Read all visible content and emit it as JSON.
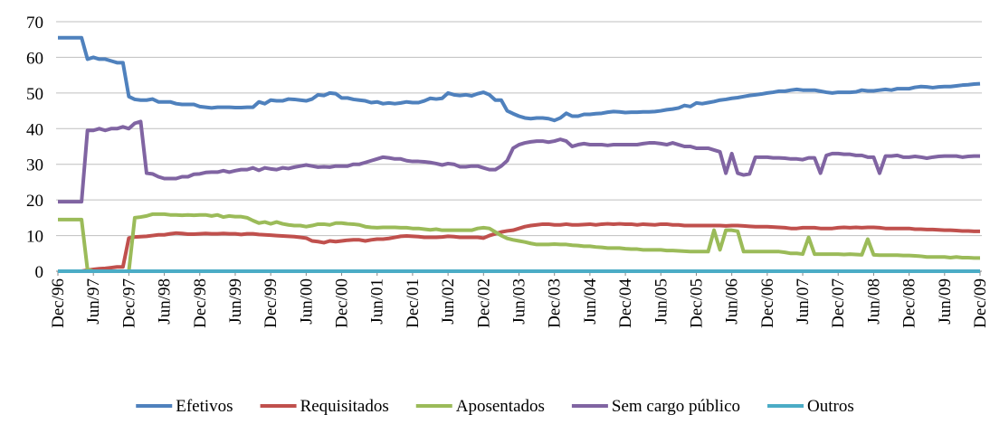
{
  "chart_data": {
    "type": "line",
    "categories": [
      "Dec/96",
      null,
      null,
      null,
      null,
      null,
      "Jun/97",
      null,
      null,
      null,
      null,
      null,
      "Dec/97",
      null,
      null,
      null,
      null,
      null,
      "Jun/98",
      null,
      null,
      null,
      null,
      null,
      "Dec/98",
      null,
      null,
      null,
      null,
      null,
      "Jun/99",
      null,
      null,
      null,
      null,
      null,
      "Dec/99",
      null,
      null,
      null,
      null,
      null,
      "Jun/00",
      null,
      null,
      null,
      null,
      null,
      "Dec/00",
      null,
      null,
      null,
      null,
      null,
      "Jun/01",
      null,
      null,
      null,
      null,
      null,
      "Dec/01",
      null,
      null,
      null,
      null,
      null,
      "Jun/02",
      null,
      null,
      null,
      null,
      null,
      "Dec/02",
      null,
      null,
      null,
      null,
      null,
      "Jun/03",
      null,
      null,
      null,
      null,
      null,
      "Dec/03",
      null,
      null,
      null,
      null,
      null,
      "Jun/04",
      null,
      null,
      null,
      null,
      null,
      "Dec/04",
      null,
      null,
      null,
      null,
      null,
      "Jun/05",
      null,
      null,
      null,
      null,
      null,
      "Dec/05",
      null,
      null,
      null,
      null,
      null,
      "Jun/06",
      null,
      null,
      null,
      null,
      null,
      "Dec/06",
      null,
      null,
      null,
      null,
      null,
      "Jun/07",
      null,
      null,
      null,
      null,
      null,
      "Dec/07",
      null,
      null,
      null,
      null,
      null,
      "Jun/08",
      null,
      null,
      null,
      null,
      null,
      "Dec/08",
      null,
      null,
      null,
      null,
      null,
      "Jun/09",
      null,
      null,
      null,
      null,
      null,
      "Dec/09"
    ],
    "series": [
      {
        "name": "Efetivos",
        "color": "#4f81bd",
        "values": [
          65.5,
          65.5,
          65.5,
          65.5,
          65.5,
          59.5,
          60,
          59.5,
          59.5,
          59,
          58.5,
          58.5,
          49,
          48.2,
          48,
          48,
          48.3,
          47.5,
          47.5,
          47.5,
          47,
          46.8,
          46.8,
          46.8,
          46.2,
          46,
          45.8,
          46,
          46,
          46,
          45.9,
          45.9,
          46,
          46,
          47.5,
          47,
          48,
          47.8,
          47.8,
          48.3,
          48.2,
          48,
          47.8,
          48.3,
          49.5,
          49.3,
          50,
          49.8,
          48.6,
          48.6,
          48.2,
          48,
          47.8,
          47.3,
          47.5,
          47,
          47.2,
          47,
          47.2,
          47.5,
          47.3,
          47.3,
          47.8,
          48.5,
          48.3,
          48.5,
          50,
          49.5,
          49.3,
          49.5,
          49.2,
          49.8,
          50.2,
          49.5,
          48,
          48,
          45,
          44.2,
          43.5,
          43,
          42.8,
          43,
          43,
          42.8,
          42.3,
          43,
          44.3,
          43.5,
          43.5,
          44,
          44,
          44.2,
          44.3,
          44.6,
          44.8,
          44.7,
          44.5,
          44.6,
          44.6,
          44.7,
          44.7,
          44.8,
          45,
          45.3,
          45.5,
          45.8,
          46.5,
          46.2,
          47.2,
          47,
          47.3,
          47.6,
          48,
          48.2,
          48.5,
          48.7,
          49,
          49.3,
          49.5,
          49.7,
          50,
          50.2,
          50.5,
          50.5,
          50.8,
          51,
          50.8,
          50.8,
          50.8,
          50.5,
          50.2,
          50,
          50.2,
          50.2,
          50.2,
          50.3,
          50.8,
          50.6,
          50.6,
          50.8,
          51,
          50.8,
          51.2,
          51.2,
          51.2,
          51.6,
          51.8,
          51.7,
          51.5,
          51.7,
          51.8,
          51.8,
          52,
          52.2,
          52.3,
          52.5,
          52.6
        ]
      },
      {
        "name": "Requisitados",
        "color": "#c0504d",
        "values": [
          0,
          0,
          0,
          0,
          0,
          0.3,
          0.5,
          0.7,
          0.8,
          1,
          1.2,
          1.2,
          9.3,
          9.6,
          9.7,
          9.8,
          10,
          10.2,
          10.2,
          10.5,
          10.7,
          10.6,
          10.4,
          10.4,
          10.5,
          10.6,
          10.5,
          10.5,
          10.6,
          10.5,
          10.5,
          10.3,
          10.5,
          10.5,
          10.3,
          10.2,
          10.1,
          10,
          9.9,
          9.8,
          9.7,
          9.5,
          9.3,
          8.5,
          8.3,
          8,
          8.5,
          8.3,
          8.5,
          8.7,
          8.8,
          8.8,
          8.5,
          8.8,
          9,
          9,
          9.2,
          9.5,
          9.8,
          9.9,
          9.8,
          9.7,
          9.5,
          9.5,
          9.5,
          9.6,
          9.8,
          9.7,
          9.5,
          9.5,
          9.5,
          9.5,
          9.3,
          10,
          10.5,
          11,
          11.3,
          11.5,
          12,
          12.5,
          12.8,
          13,
          13.2,
          13.2,
          13,
          13,
          13.2,
          13,
          13,
          13.1,
          13.2,
          13,
          13.2,
          13.3,
          13.2,
          13.3,
          13.2,
          13.2,
          13,
          13.2,
          13.1,
          13,
          13.2,
          13.2,
          13,
          13,
          12.8,
          12.8,
          12.8,
          12.8,
          12.8,
          12.8,
          12.8,
          12.7,
          12.8,
          12.8,
          12.7,
          12.6,
          12.5,
          12.5,
          12.5,
          12.4,
          12.3,
          12.2,
          12,
          12,
          12.2,
          12.2,
          12.2,
          12,
          12,
          12,
          12.2,
          12.3,
          12.2,
          12.3,
          12.2,
          12.3,
          12.3,
          12.2,
          12,
          12,
          12,
          12,
          12,
          11.8,
          11.8,
          11.7,
          11.7,
          11.6,
          11.5,
          11.5,
          11.4,
          11.3,
          11.3,
          11.2,
          11.2
        ]
      },
      {
        "name": "Aposentados",
        "color": "#9bbb59",
        "values": [
          14.5,
          14.5,
          14.5,
          14.5,
          14.5,
          0.5,
          0,
          0,
          0,
          0,
          0,
          0,
          0,
          15,
          15.2,
          15.5,
          16,
          16,
          16,
          15.8,
          15.8,
          15.7,
          15.8,
          15.7,
          15.8,
          15.8,
          15.5,
          15.8,
          15.2,
          15.5,
          15.3,
          15.3,
          15,
          14.2,
          13.5,
          13.8,
          13.3,
          13.8,
          13.3,
          13,
          12.8,
          12.8,
          12.5,
          12.8,
          13.2,
          13.2,
          13,
          13.5,
          13.5,
          13.3,
          13.2,
          13,
          12.5,
          12.3,
          12.2,
          12.3,
          12.3,
          12.3,
          12.2,
          12.2,
          12,
          12,
          11.8,
          11.6,
          11.8,
          11.5,
          11.5,
          11.5,
          11.5,
          11.5,
          11.5,
          12,
          12.2,
          12,
          11,
          10,
          9.2,
          8.8,
          8.5,
          8.2,
          7.8,
          7.5,
          7.5,
          7.5,
          7.6,
          7.5,
          7.5,
          7.3,
          7.2,
          7,
          7,
          6.8,
          6.7,
          6.5,
          6.5,
          6.5,
          6.3,
          6.2,
          6.2,
          6,
          6,
          6,
          6,
          5.8,
          5.8,
          5.7,
          5.6,
          5.5,
          5.5,
          5.5,
          5.5,
          11.5,
          6,
          11.5,
          11.5,
          11.2,
          5.5,
          5.5,
          5.5,
          5.5,
          5.5,
          5.5,
          5.5,
          5.3,
          5,
          5,
          4.8,
          9.5,
          4.8,
          4.8,
          4.8,
          4.8,
          4.8,
          4.7,
          4.8,
          4.7,
          4.6,
          9,
          4.6,
          4.5,
          4.5,
          4.5,
          4.5,
          4.4,
          4.4,
          4.3,
          4.2,
          4,
          4,
          4,
          4,
          3.8,
          4,
          3.8,
          3.8,
          3.7,
          3.7
        ]
      },
      {
        "name": "Sem cargo público",
        "color": "#8064a2",
        "values": [
          19.5,
          19.5,
          19.5,
          19.5,
          19.5,
          39.5,
          39.5,
          40,
          39.5,
          40,
          40,
          40.5,
          40,
          41.5,
          42,
          27.5,
          27.3,
          26.5,
          26,
          26,
          26,
          26.5,
          26.5,
          27.2,
          27.3,
          27.7,
          27.8,
          27.8,
          28.2,
          27.8,
          28.2,
          28.5,
          28.5,
          29,
          28.3,
          29,
          28.7,
          28.5,
          29,
          28.8,
          29.2,
          29.5,
          29.8,
          29.5,
          29.2,
          29.3,
          29.2,
          29.5,
          29.5,
          29.5,
          30,
          30,
          30.5,
          31,
          31.5,
          32,
          31.8,
          31.5,
          31.5,
          31,
          30.8,
          30.8,
          30.7,
          30.5,
          30.2,
          29.8,
          30.2,
          30,
          29.3,
          29.3,
          29.5,
          29.5,
          29,
          28.5,
          28.5,
          29.5,
          31,
          34.5,
          35.5,
          36,
          36.3,
          36.5,
          36.5,
          36.2,
          36.5,
          37,
          36.5,
          35,
          35.5,
          35.8,
          35.5,
          35.5,
          35.5,
          35.3,
          35.5,
          35.5,
          35.5,
          35.5,
          35.5,
          35.8,
          36,
          36,
          35.8,
          35.5,
          36,
          35.5,
          35,
          35,
          34.5,
          34.5,
          34.5,
          34,
          33.5,
          27.5,
          33,
          27.5,
          27,
          27.3,
          32,
          32,
          32,
          31.8,
          31.8,
          31.7,
          31.5,
          31.5,
          31.3,
          31.8,
          31.8,
          27.5,
          32.5,
          33,
          33,
          32.8,
          32.8,
          32.5,
          32.5,
          32,
          32,
          27.5,
          32.3,
          32.3,
          32.5,
          32,
          32,
          32.2,
          32,
          31.7,
          32,
          32.2,
          32.3,
          32.3,
          32.3,
          32,
          32.2,
          32.3,
          32.3
        ]
      },
      {
        "name": "Outros",
        "color": "#4bacc6",
        "values": [
          0,
          0,
          0,
          0,
          0,
          0,
          0,
          0,
          0,
          0,
          0,
          0,
          0,
          0,
          0,
          0,
          0,
          0,
          0,
          0,
          0,
          0,
          0,
          0,
          0,
          0,
          0,
          0,
          0,
          0,
          0,
          0,
          0,
          0,
          0,
          0,
          0,
          0,
          0,
          0,
          0,
          0,
          0,
          0,
          0,
          0,
          0,
          0,
          0,
          0,
          0,
          0,
          0,
          0,
          0,
          0,
          0,
          0,
          0,
          0,
          0,
          0,
          0,
          0,
          0,
          0,
          0,
          0,
          0,
          0,
          0,
          0,
          0,
          0,
          0,
          0,
          0,
          0,
          0,
          0,
          0,
          0,
          0,
          0,
          0,
          0,
          0,
          0,
          0,
          0,
          0,
          0,
          0,
          0,
          0,
          0,
          0,
          0,
          0,
          0,
          0,
          0,
          0,
          0,
          0,
          0,
          0,
          0,
          0,
          0,
          0,
          0,
          0,
          0,
          0,
          0,
          0,
          0,
          0,
          0,
          0,
          0,
          0,
          0,
          0,
          0,
          0,
          0,
          0,
          0,
          0,
          0,
          0,
          0,
          0,
          0,
          0,
          0,
          0,
          0,
          0,
          0,
          0,
          0,
          0,
          0,
          0,
          0,
          0,
          0,
          0,
          0,
          0,
          0,
          0,
          0,
          0
        ]
      }
    ],
    "ylim": [
      0,
      70
    ],
    "yticks": [
      0,
      10,
      20,
      30,
      40,
      50,
      60,
      70
    ],
    "grid": true,
    "legend": "bottom"
  }
}
